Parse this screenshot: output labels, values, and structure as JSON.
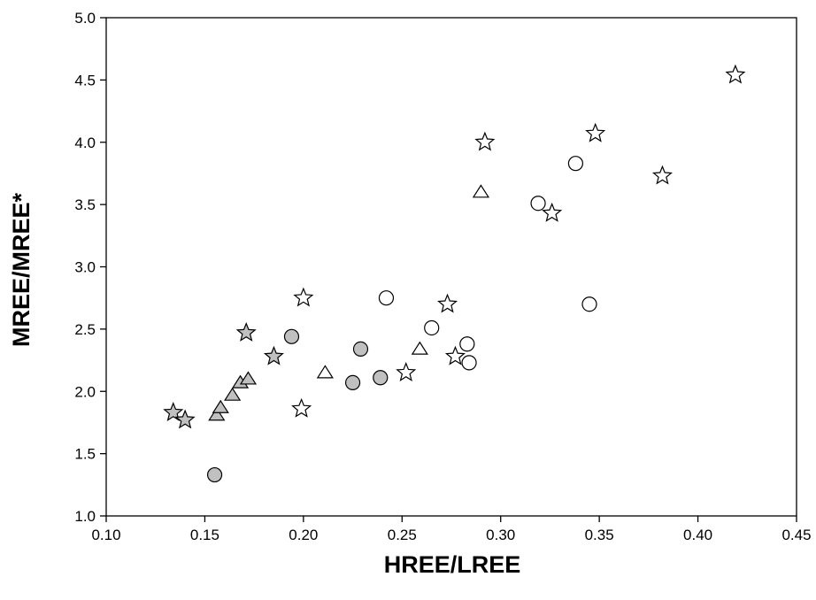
{
  "chart_data": {
    "type": "scatter",
    "title": "",
    "xlabel": "HREE/LREE",
    "ylabel": "MREE/MREE*",
    "xlim": [
      0.1,
      0.45
    ],
    "ylim": [
      1.0,
      5.0
    ],
    "xticks": [
      "0.10",
      "0.15",
      "0.20",
      "0.25",
      "0.30",
      "0.35",
      "0.40",
      "0.45"
    ],
    "yticks": [
      "1.0",
      "1.5",
      "2.0",
      "2.5",
      "3.0",
      "3.5",
      "4.0",
      "4.5",
      "5.0"
    ],
    "grid": false,
    "legend": "none",
    "series": [
      {
        "marker": "star",
        "fill": "#ffffff",
        "stroke": "#000000",
        "points": [
          [
            0.199,
            1.86
          ],
          [
            0.2,
            2.75
          ],
          [
            0.252,
            2.15
          ],
          [
            0.273,
            2.7
          ],
          [
            0.277,
            2.28
          ],
          [
            0.292,
            4.0
          ],
          [
            0.326,
            3.43
          ],
          [
            0.348,
            4.07
          ],
          [
            0.382,
            3.73
          ],
          [
            0.419,
            4.54
          ]
        ]
      },
      {
        "marker": "star",
        "fill": "#c0c0c0",
        "stroke": "#000000",
        "points": [
          [
            0.134,
            1.83
          ],
          [
            0.14,
            1.77
          ],
          [
            0.171,
            2.47
          ],
          [
            0.185,
            2.28
          ]
        ]
      },
      {
        "marker": "circle",
        "fill": "#ffffff",
        "stroke": "#000000",
        "points": [
          [
            0.242,
            2.75
          ],
          [
            0.265,
            2.51
          ],
          [
            0.283,
            2.38
          ],
          [
            0.284,
            2.23
          ],
          [
            0.319,
            3.51
          ],
          [
            0.338,
            3.83
          ],
          [
            0.345,
            2.7
          ]
        ]
      },
      {
        "marker": "circle",
        "fill": "#c0c0c0",
        "stroke": "#000000",
        "points": [
          [
            0.155,
            1.33
          ],
          [
            0.194,
            2.44
          ],
          [
            0.225,
            2.07
          ],
          [
            0.229,
            2.34
          ],
          [
            0.239,
            2.11
          ]
        ]
      },
      {
        "marker": "triangle",
        "fill": "#ffffff",
        "stroke": "#000000",
        "points": [
          [
            0.211,
            2.15
          ],
          [
            0.259,
            2.34
          ],
          [
            0.29,
            3.6
          ]
        ]
      },
      {
        "marker": "triangle",
        "fill": "#c0c0c0",
        "stroke": "#000000",
        "points": [
          [
            0.156,
            1.81
          ],
          [
            0.158,
            1.87
          ],
          [
            0.164,
            1.97
          ],
          [
            0.168,
            2.07
          ],
          [
            0.172,
            2.1
          ]
        ]
      }
    ]
  }
}
